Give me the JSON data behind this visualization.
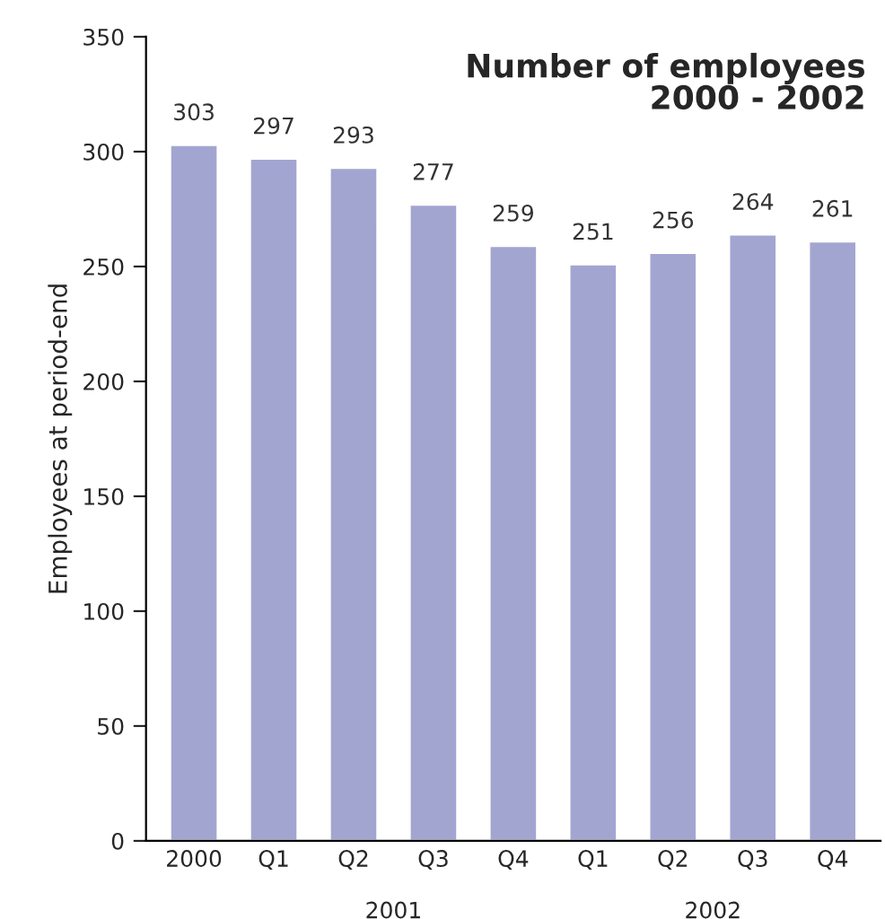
{
  "chart_data": {
    "type": "bar",
    "title": "Number of employees\n2000 - 2002",
    "ylabel": "Employees at period-end",
    "categories": [
      "2000",
      "Q1",
      "Q2",
      "Q3",
      "Q4",
      "Q1",
      "Q2",
      "Q3",
      "Q4"
    ],
    "values": [
      303,
      297,
      293,
      277,
      259,
      251,
      256,
      264,
      261
    ],
    "color": "#a3a5d1",
    "data_labels": true,
    "ylim": [
      0,
      350
    ],
    "yticks": [
      0,
      50,
      100,
      150,
      200,
      250,
      300,
      350
    ],
    "annotations": [
      "2001",
      "2002"
    ],
    "grid": false,
    "legend": false
  }
}
